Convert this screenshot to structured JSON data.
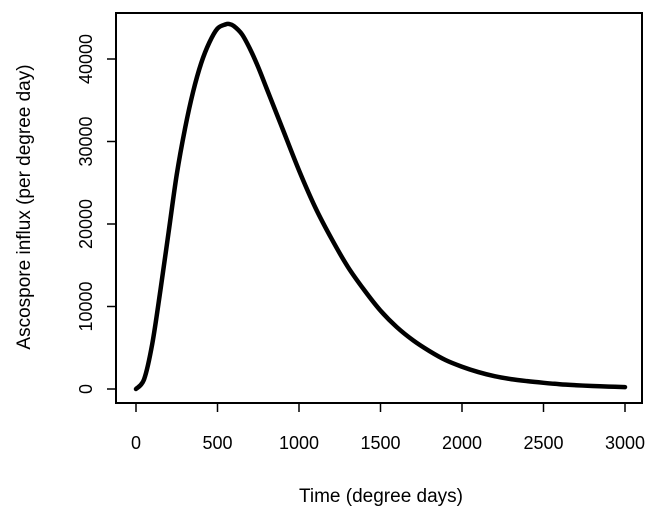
{
  "chart_data": {
    "type": "line",
    "title": "",
    "xlabel": "Time (degree days)",
    "ylabel": "Ascospore influx (per degree day)",
    "xlim": [
      0,
      3000
    ],
    "ylim": [
      0,
      44000
    ],
    "xticks": [
      0,
      500,
      1000,
      1500,
      2000,
      2500,
      3000
    ],
    "yticks": [
      0,
      10000,
      20000,
      30000,
      40000
    ],
    "grid": false,
    "legend": "none",
    "line_color": "#000000",
    "series": [
      {
        "x": [
          0,
          50,
          100,
          150,
          200,
          250,
          300,
          350,
          400,
          450,
          500,
          550,
          570,
          600,
          650,
          700,
          750,
          800,
          850,
          900,
          1000,
          1100,
          1200,
          1300,
          1400,
          1500,
          1600,
          1700,
          1800,
          1900,
          2000,
          2100,
          2200,
          2300,
          2400,
          2500,
          2600,
          2700,
          2800,
          2900,
          3000
        ],
        "y": [
          0,
          1200,
          5500,
          12000,
          19000,
          26000,
          31500,
          36000,
          39500,
          42000,
          43700,
          44200,
          44250,
          44000,
          43000,
          41200,
          39000,
          36500,
          34000,
          31500,
          26500,
          22000,
          18200,
          14800,
          12000,
          9500,
          7500,
          5900,
          4600,
          3500,
          2700,
          2050,
          1550,
          1200,
          950,
          750,
          580,
          460,
          360,
          290,
          230
        ]
      }
    ]
  }
}
